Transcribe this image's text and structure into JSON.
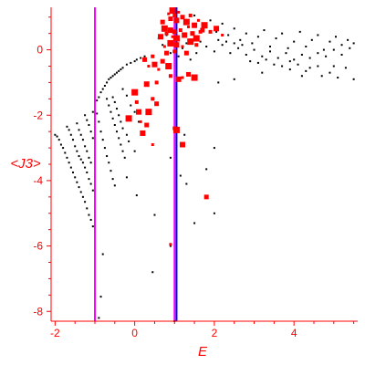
{
  "chart_data": {
    "type": "scatter",
    "xlabel": "E",
    "ylabel": "<J3>",
    "xlim": [
      -2.1,
      5.6
    ],
    "ylim": [
      -8.3,
      1.3
    ],
    "x_ticks": [
      -2,
      0,
      2,
      4
    ],
    "y_ticks": [
      0,
      -2,
      -4,
      -6,
      -8
    ],
    "axis_color": "#ff0000",
    "vertical_lines": [
      {
        "x": -1.0,
        "color": "#ff00ff"
      },
      {
        "x": 1.0,
        "color": "#ff00ff"
      },
      {
        "x": 1.05,
        "color": "#0000ff"
      }
    ],
    "series": [
      {
        "color": "#000000",
        "marker": "small-dot",
        "points": [
          [
            -2.0,
            -2.6
          ],
          [
            -1.95,
            -2.65
          ],
          [
            -1.9,
            -2.75
          ],
          [
            -1.85,
            -2.9
          ],
          [
            -1.8,
            -3.0
          ],
          [
            -1.75,
            -3.15
          ],
          [
            -1.7,
            -3.3
          ],
          [
            -1.65,
            -3.45
          ],
          [
            -1.6,
            -3.6
          ],
          [
            -1.55,
            -3.75
          ],
          [
            -1.5,
            -3.9
          ],
          [
            -1.45,
            -4.05
          ],
          [
            -1.4,
            -4.2
          ],
          [
            -1.35,
            -4.35
          ],
          [
            -1.3,
            -4.5
          ],
          [
            -1.25,
            -4.65
          ],
          [
            -1.2,
            -4.85
          ],
          [
            -1.15,
            -5.05
          ],
          [
            -1.1,
            -5.2
          ],
          [
            -1.05,
            -5.4
          ],
          [
            -1.7,
            -2.35
          ],
          [
            -1.65,
            -2.45
          ],
          [
            -1.6,
            -2.6
          ],
          [
            -1.55,
            -2.75
          ],
          [
            -1.5,
            -2.95
          ],
          [
            -1.45,
            -3.1
          ],
          [
            -1.4,
            -3.25
          ],
          [
            -1.35,
            -3.35
          ],
          [
            -1.3,
            -3.45
          ],
          [
            -1.25,
            -3.6
          ],
          [
            -1.2,
            -3.75
          ],
          [
            -1.15,
            -3.95
          ],
          [
            -1.1,
            -4.1
          ],
          [
            -1.05,
            -4.3
          ],
          [
            -1.45,
            -2.25
          ],
          [
            -1.4,
            -2.45
          ],
          [
            -1.35,
            -2.6
          ],
          [
            -1.3,
            -2.75
          ],
          [
            -1.25,
            -2.95
          ],
          [
            -1.2,
            -3.1
          ],
          [
            -1.15,
            -3.3
          ],
          [
            -1.1,
            -3.45
          ],
          [
            -1.25,
            -2.0
          ],
          [
            -1.2,
            -2.15
          ],
          [
            -1.15,
            -2.3
          ],
          [
            -1.1,
            -2.5
          ],
          [
            -1.05,
            -2.7
          ],
          [
            -1.05,
            -1.9
          ],
          [
            -0.95,
            -1.95
          ],
          [
            -0.9,
            -2.2
          ],
          [
            -0.85,
            -2.5
          ],
          [
            -0.8,
            -2.75
          ],
          [
            -0.75,
            -3.0
          ],
          [
            -0.7,
            -3.25
          ],
          [
            -0.65,
            -3.45
          ],
          [
            -0.6,
            -3.7
          ],
          [
            -0.55,
            -3.95
          ],
          [
            -0.5,
            -4.15
          ],
          [
            -0.95,
            -1.55
          ],
          [
            -0.9,
            -1.45
          ],
          [
            -0.85,
            -1.3
          ],
          [
            -0.8,
            -1.2
          ],
          [
            -0.75,
            -1.1
          ],
          [
            -0.7,
            -1.0
          ],
          [
            -0.65,
            -0.9
          ],
          [
            -0.6,
            -0.85
          ],
          [
            -0.55,
            -0.8
          ],
          [
            -0.5,
            -0.75
          ],
          [
            -0.45,
            -0.7
          ],
          [
            -0.4,
            -0.65
          ],
          [
            -0.35,
            -0.6
          ],
          [
            -0.3,
            -0.55
          ],
          [
            -0.7,
            -1.5
          ],
          [
            -0.65,
            -1.7
          ],
          [
            -0.6,
            -1.9
          ],
          [
            -0.55,
            -2.1
          ],
          [
            -0.5,
            -2.3
          ],
          [
            -0.45,
            -2.5
          ],
          [
            -0.4,
            -2.7
          ],
          [
            -0.35,
            -2.9
          ],
          [
            -0.3,
            -3.1
          ],
          [
            -0.25,
            -3.3
          ],
          [
            -0.55,
            -1.45
          ],
          [
            -0.5,
            -1.6
          ],
          [
            -0.45,
            -1.8
          ],
          [
            -0.4,
            -2.0
          ],
          [
            -0.35,
            -2.2
          ],
          [
            -0.3,
            -2.4
          ],
          [
            -0.2,
            -2.6
          ],
          [
            -0.15,
            -2.8
          ],
          [
            0.0,
            -3.1
          ],
          [
            -0.3,
            -1.2
          ],
          [
            -0.2,
            -1.4
          ],
          [
            -0.1,
            -1.7
          ],
          [
            0.0,
            -1.9
          ],
          [
            0.1,
            -2.2
          ],
          [
            0.2,
            -2.5
          ],
          [
            -0.2,
            -0.45
          ],
          [
            -0.1,
            -0.4
          ],
          [
            0.0,
            -0.35
          ],
          [
            0.05,
            -0.3
          ],
          [
            0.15,
            -0.25
          ],
          [
            0.25,
            -0.2
          ],
          [
            -0.8,
            -6.25
          ],
          [
            -0.85,
            -7.55
          ],
          [
            -0.9,
            -8.2
          ],
          [
            1.0,
            -8.3
          ],
          [
            0.45,
            -6.8
          ],
          [
            0.05,
            -4.45
          ],
          [
            -0.2,
            -3.9
          ],
          [
            0.5,
            -5.05
          ],
          [
            1.3,
            -4.1
          ],
          [
            1.5,
            -5.3
          ],
          [
            0.9,
            -6.0
          ],
          [
            2.0,
            -3.0
          ],
          [
            2.0,
            -5.0
          ],
          [
            1.8,
            -3.65
          ],
          [
            2.1,
            -1.0
          ],
          [
            2.5,
            -0.9
          ],
          [
            3.2,
            -0.7
          ],
          [
            3.9,
            -0.6
          ],
          [
            4.3,
            -0.65
          ],
          [
            4.7,
            -0.8
          ],
          [
            5.1,
            -0.85
          ],
          [
            5.5,
            -0.9
          ],
          [
            4.2,
            -0.8
          ],
          [
            4.9,
            -0.7
          ],
          [
            1.3,
            0.9
          ],
          [
            1.5,
            1.05
          ],
          [
            1.7,
            0.8
          ],
          [
            1.9,
            0.9
          ],
          [
            2.05,
            0.55
          ],
          [
            2.2,
            0.8
          ],
          [
            2.35,
            0.45
          ],
          [
            2.5,
            0.65
          ],
          [
            2.65,
            0.3
          ],
          [
            2.8,
            0.5
          ],
          [
            2.95,
            0.2
          ],
          [
            3.1,
            0.4
          ],
          [
            3.25,
            0.6
          ],
          [
            3.4,
            0.1
          ],
          [
            3.55,
            0.35
          ],
          [
            3.7,
            0.5
          ],
          [
            3.85,
            0.05
          ],
          [
            4.0,
            0.25
          ],
          [
            4.15,
            0.55
          ],
          [
            4.3,
            0.1
          ],
          [
            4.45,
            0.3
          ],
          [
            4.6,
            0.45
          ],
          [
            4.75,
            0.0
          ],
          [
            4.9,
            0.25
          ],
          [
            5.05,
            0.4
          ],
          [
            5.2,
            0.15
          ],
          [
            5.35,
            0.3
          ],
          [
            5.5,
            0.2
          ],
          [
            1.8,
            0.1
          ],
          [
            2.0,
            -0.05
          ],
          [
            2.2,
            0.15
          ],
          [
            2.4,
            -0.1
          ],
          [
            2.6,
            0.05
          ],
          [
            2.8,
            -0.15
          ],
          [
            3.0,
            0.0
          ],
          [
            3.2,
            -0.2
          ],
          [
            3.4,
            -0.05
          ],
          [
            3.6,
            -0.25
          ],
          [
            3.8,
            -0.1
          ],
          [
            4.0,
            -0.3
          ],
          [
            4.2,
            -0.15
          ],
          [
            4.4,
            -0.25
          ],
          [
            4.6,
            -0.1
          ],
          [
            4.8,
            -0.2
          ],
          [
            5.0,
            0.0
          ],
          [
            5.2,
            -0.15
          ],
          [
            5.4,
            0.05
          ],
          [
            2.1,
            0.3
          ],
          [
            2.3,
            0.25
          ],
          [
            2.5,
            0.2
          ],
          [
            2.7,
            0.15
          ],
          [
            2.9,
            -0.35
          ],
          [
            3.1,
            -0.4
          ],
          [
            3.3,
            -0.3
          ],
          [
            3.5,
            -0.45
          ],
          [
            3.7,
            -0.5
          ],
          [
            3.9,
            -0.35
          ],
          [
            4.1,
            -0.45
          ],
          [
            4.4,
            -0.55
          ],
          [
            4.6,
            -0.5
          ],
          [
            5.0,
            -0.5
          ],
          [
            5.3,
            -0.55
          ],
          [
            0.6,
            0.35
          ],
          [
            0.7,
            0.15
          ],
          [
            0.8,
            0.45
          ],
          [
            0.9,
            -0.1
          ],
          [
            1.1,
            -0.2
          ],
          [
            1.2,
            0.05
          ],
          [
            1.3,
            0.2
          ],
          [
            1.4,
            -0.3
          ],
          [
            1.55,
            -0.1
          ],
          [
            1.65,
            0.25
          ],
          [
            0.9,
            -3.3
          ],
          [
            1.15,
            -3.85
          ],
          [
            1.25,
            -2.6
          ]
        ]
      },
      {
        "color": "#ff0000",
        "marker": "square",
        "points": [
          [
            0.85,
            1.1
          ],
          [
            0.9,
            0.95
          ],
          [
            0.95,
            1.2
          ],
          [
            1.0,
            1.05
          ],
          [
            1.05,
            0.9
          ],
          [
            1.1,
            1.15
          ],
          [
            1.2,
            1.0
          ],
          [
            1.3,
            0.85
          ],
          [
            1.4,
            1.05
          ],
          [
            1.5,
            0.75
          ],
          [
            1.6,
            0.9
          ],
          [
            1.7,
            0.6
          ],
          [
            1.75,
            0.75
          ],
          [
            1.9,
            0.55
          ],
          [
            2.05,
            0.65
          ],
          [
            2.2,
            0.45
          ],
          [
            0.7,
            0.85
          ],
          [
            0.75,
            0.65
          ],
          [
            0.8,
            0.5
          ],
          [
            0.9,
            0.6
          ],
          [
            0.95,
            0.4
          ],
          [
            1.0,
            0.55
          ],
          [
            1.05,
            0.35
          ],
          [
            1.15,
            0.6
          ],
          [
            1.25,
            0.45
          ],
          [
            1.35,
            0.7
          ],
          [
            1.45,
            0.5
          ],
          [
            1.55,
            0.35
          ],
          [
            1.65,
            0.55
          ],
          [
            0.65,
            0.4
          ],
          [
            0.75,
            0.1
          ],
          [
            0.8,
            -0.1
          ],
          [
            0.9,
            0.2
          ],
          [
            1.0,
            -0.05
          ],
          [
            1.05,
            0.15
          ],
          [
            1.2,
            0.1
          ],
          [
            1.3,
            -0.1
          ],
          [
            1.4,
            0.25
          ],
          [
            0.45,
            -0.2
          ],
          [
            0.5,
            -0.45
          ],
          [
            0.6,
            -0.6
          ],
          [
            0.7,
            -0.35
          ],
          [
            0.85,
            -0.5
          ],
          [
            0.9,
            -0.8
          ],
          [
            1.1,
            -0.9
          ],
          [
            1.2,
            -0.85
          ],
          [
            1.35,
            -0.75
          ],
          [
            1.5,
            -0.85
          ],
          [
            0.55,
            -1.0
          ],
          [
            0.3,
            -1.05
          ],
          [
            0.35,
            -0.5
          ],
          [
            0.25,
            -0.3
          ],
          [
            0.0,
            -1.3
          ],
          [
            0.05,
            -1.6
          ],
          [
            0.1,
            -1.9
          ],
          [
            0.15,
            -2.2
          ],
          [
            0.3,
            -2.3
          ],
          [
            0.35,
            -1.9
          ],
          [
            0.45,
            -1.5
          ],
          [
            0.2,
            -2.55
          ],
          [
            0.45,
            -2.9
          ],
          [
            0.55,
            -1.65
          ],
          [
            1.05,
            -2.45
          ],
          [
            1.0,
            -2.4
          ],
          [
            1.2,
            -2.9
          ],
          [
            0.9,
            -5.95
          ],
          [
            1.8,
            -4.5
          ],
          [
            -0.15,
            -2.1
          ],
          [
            1.55,
            0.15
          ]
        ]
      }
    ]
  }
}
